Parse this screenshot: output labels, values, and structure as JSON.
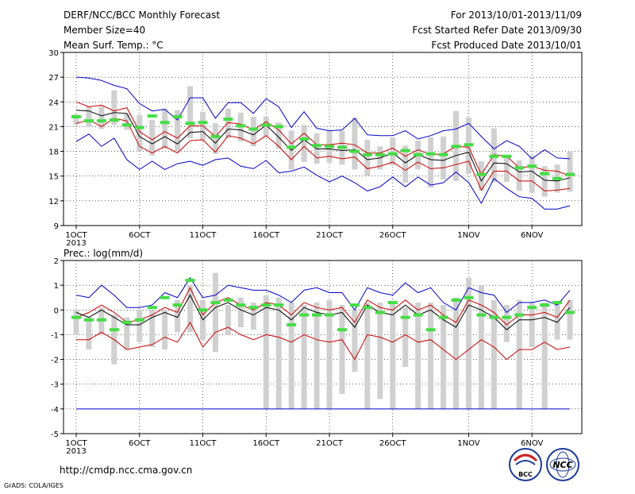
{
  "header": {
    "title": "DERF/NCC/BCC Monthly Forecast",
    "member_size": "Member Size=40",
    "variable": "Mean Surf. Temp.: °C",
    "for_period": "For 2013/10/01-2013/11/09",
    "fcst_started": "Fcst Started Refer Date 2013/09/30",
    "fcst_produced": "Fcst Produced Date 2013/10/01"
  },
  "footer": {
    "url": "http://cmdp.ncc.cma.gov.cn",
    "credit": "GrADS: COLA/IGES",
    "logo_left_text": "BCC",
    "logo_right_text": "NCC"
  },
  "colors": {
    "envelope": "#0000cc",
    "percentile": "#cc0000",
    "mean": "#000000",
    "box": "#d0d0d0",
    "climate_marker": "#44dd44"
  },
  "chart_data": [
    {
      "type": "line",
      "title": "Mean Surf. Temp.: °C",
      "ylim": [
        9,
        30
      ],
      "yticks": [
        "9",
        "12",
        "15",
        "18",
        "21",
        "24",
        "27",
        "30"
      ],
      "xticks": [
        {
          "day": 1,
          "label": "1OCT"
        },
        {
          "day": 6,
          "label": "6OCT"
        },
        {
          "day": 11,
          "label": "11OCT"
        },
        {
          "day": 16,
          "label": "16OCT"
        },
        {
          "day": 21,
          "label": "21OCT"
        },
        {
          "day": 26,
          "label": "26OCT"
        },
        {
          "day": 32,
          "label": "1NOV"
        },
        {
          "day": 37,
          "label": "6NOV"
        }
      ],
      "year_label": "2013",
      "x": [
        1,
        2,
        3,
        4,
        5,
        6,
        7,
        8,
        9,
        10,
        11,
        12,
        13,
        14,
        15,
        16,
        17,
        18,
        19,
        20,
        21,
        22,
        23,
        24,
        25,
        26,
        27,
        28,
        29,
        30,
        31,
        32,
        33,
        34,
        35,
        36,
        37,
        38,
        39,
        40
      ],
      "series": [
        {
          "role": "max",
          "values": [
            27.0,
            26.9,
            26.6,
            26.0,
            25.6,
            23.8,
            22.9,
            23.1,
            21.8,
            24.5,
            24.5,
            22.0,
            23.9,
            23.9,
            22.6,
            24.4,
            23.4,
            20.9,
            22.8,
            20.8,
            20.5,
            20.6,
            22.0,
            20.0,
            19.9,
            19.9,
            20.5,
            19.5,
            19.9,
            20.5,
            20.7,
            21.4,
            19.8,
            18.3,
            19.3,
            18.6,
            17.1,
            18.2,
            17.2,
            17.1
          ]
        },
        {
          "role": "p90",
          "values": [
            24.0,
            23.4,
            23.6,
            22.9,
            23.3,
            20.4,
            19.4,
            20.4,
            19.6,
            21.1,
            21.1,
            19.8,
            21.5,
            21.3,
            20.6,
            21.6,
            20.6,
            18.9,
            20.2,
            18.8,
            18.8,
            19.0,
            18.8,
            17.8,
            17.8,
            18.4,
            17.4,
            18.2,
            17.6,
            17.7,
            18.6,
            18.5,
            15.2,
            17.6,
            17.4,
            16.0,
            16.2,
            15.7,
            15.6,
            15.0
          ]
        },
        {
          "role": "mean",
          "values": [
            23.0,
            22.9,
            22.3,
            22.7,
            22.6,
            19.8,
            18.9,
            19.8,
            18.9,
            20.3,
            20.4,
            19.0,
            20.7,
            20.6,
            20.0,
            21.2,
            19.7,
            18.1,
            19.4,
            18.3,
            18.3,
            18.1,
            18.2,
            17.0,
            17.2,
            17.8,
            16.6,
            17.6,
            17.0,
            16.9,
            17.5,
            17.9,
            14.4,
            16.6,
            16.5,
            15.5,
            15.6,
            14.5,
            14.4,
            14.8
          ]
        },
        {
          "role": "p10",
          "values": [
            21.4,
            21.8,
            21.0,
            22.0,
            21.7,
            18.6,
            17.8,
            18.6,
            17.8,
            19.3,
            19.4,
            17.9,
            19.9,
            19.6,
            18.9,
            19.9,
            18.6,
            17.0,
            18.6,
            17.2,
            17.4,
            17.1,
            17.3,
            15.9,
            16.2,
            16.7,
            15.7,
            16.7,
            15.9,
            16.0,
            16.4,
            16.8,
            13.3,
            15.6,
            15.6,
            14.4,
            14.4,
            13.2,
            13.3,
            13.5
          ]
        },
        {
          "role": "min",
          "values": [
            19.2,
            20.1,
            18.6,
            19.6,
            17.0,
            15.8,
            16.8,
            15.8,
            16.5,
            16.8,
            16.3,
            17.0,
            17.2,
            16.2,
            15.9,
            16.9,
            15.4,
            15.6,
            16.1,
            15.1,
            14.3,
            15.0,
            14.2,
            13.2,
            13.7,
            14.9,
            13.7,
            14.9,
            13.9,
            14.2,
            15.5,
            14.2,
            11.7,
            14.7,
            13.5,
            12.5,
            12.3,
            11.0,
            11.0,
            11.4
          ]
        }
      ],
      "boxes": [
        {
          "low": 21.2,
          "high": 22.5
        },
        {
          "low": 21.0,
          "high": 23.5
        },
        {
          "low": 20.7,
          "high": 23.5
        },
        {
          "low": 21.2,
          "high": 25.4
        },
        {
          "low": 20.6,
          "high": 22.6
        },
        {
          "low": 18.0,
          "high": 22.4
        },
        {
          "low": 17.5,
          "high": 21.8
        },
        {
          "low": 18.3,
          "high": 23.2
        },
        {
          "low": 18.0,
          "high": 23.0
        },
        {
          "low": 19.6,
          "high": 25.9
        },
        {
          "low": 19.3,
          "high": 22.8
        },
        {
          "low": 17.7,
          "high": 21.4
        },
        {
          "low": 19.6,
          "high": 23.2
        },
        {
          "low": 19.2,
          "high": 22.7
        },
        {
          "low": 18.6,
          "high": 22.2
        },
        {
          "low": 19.8,
          "high": 22.2
        },
        {
          "low": 18.3,
          "high": 21.5
        },
        {
          "low": 15.8,
          "high": 20.5
        },
        {
          "low": 16.7,
          "high": 21.2
        },
        {
          "low": 16.5,
          "high": 20.2
        },
        {
          "low": 16.6,
          "high": 20.5
        },
        {
          "low": 16.4,
          "high": 20.5
        },
        {
          "low": 15.8,
          "high": 22.1
        },
        {
          "low": 15.0,
          "high": 19.4
        },
        {
          "low": 15.8,
          "high": 18.6
        },
        {
          "low": 16.3,
          "high": 19.7
        },
        {
          "low": 14.2,
          "high": 18.7
        },
        {
          "low": 15.8,
          "high": 19.3
        },
        {
          "low": 13.6,
          "high": 19.7
        },
        {
          "low": 14.6,
          "high": 19.8
        },
        {
          "low": 14.4,
          "high": 22.9
        },
        {
          "low": 15.3,
          "high": 22.1
        },
        {
          "low": 13.2,
          "high": 16.8
        },
        {
          "low": 14.3,
          "high": 20.8
        },
        {
          "low": 14.3,
          "high": 17.3
        },
        {
          "low": 13.2,
          "high": 16.9
        },
        {
          "low": 13.0,
          "high": 17.5
        },
        {
          "low": 12.5,
          "high": 16.2
        },
        {
          "low": 13.0,
          "high": 16.4
        },
        {
          "low": 13.1,
          "high": 18.0
        }
      ],
      "climate": [
        22.2,
        21.7,
        21.7,
        21.8,
        21.2,
        20.9,
        22.3,
        21.5,
        22.2,
        21.4,
        21.5,
        19.8,
        21.9,
        21.1,
        20.7,
        21.2,
        21.0,
        18.5,
        19.5,
        18.7,
        18.6,
        18.5,
        18.0,
        17.6,
        17.6,
        17.7,
        18.1,
        17.6,
        17.7,
        17.6,
        18.6,
        18.8,
        15.2,
        17.4,
        17.4,
        16.0,
        16.2,
        15.3,
        14.7,
        15.2
      ]
    },
    {
      "type": "line",
      "title": "Prec.: log(mm/d)",
      "ylim": [
        -5,
        2
      ],
      "yticks": [
        "-5",
        "-4",
        "-3",
        "-2",
        "-1",
        "0",
        "1",
        "2"
      ],
      "xticks": [
        {
          "day": 1,
          "label": "1OCT"
        },
        {
          "day": 6,
          "label": "6OCT"
        },
        {
          "day": 11,
          "label": "11OCT"
        },
        {
          "day": 16,
          "label": "16OCT"
        },
        {
          "day": 21,
          "label": "21OCT"
        },
        {
          "day": 26,
          "label": "26OCT"
        },
        {
          "day": 32,
          "label": "1NOV"
        },
        {
          "day": 37,
          "label": "6NOV"
        }
      ],
      "year_label": "2013",
      "x": [
        1,
        2,
        3,
        4,
        5,
        6,
        7,
        8,
        9,
        10,
        11,
        12,
        13,
        14,
        15,
        16,
        17,
        18,
        19,
        20,
        21,
        22,
        23,
        24,
        25,
        26,
        27,
        28,
        29,
        30,
        31,
        32,
        33,
        34,
        35,
        36,
        37,
        38,
        39,
        40
      ],
      "series": [
        {
          "role": "max",
          "values": [
            0.6,
            0.5,
            1.0,
            0.6,
            0.1,
            0.1,
            0.2,
            0.7,
            0.5,
            1.3,
            0.5,
            0.6,
            1.0,
            0.9,
            0.8,
            0.8,
            0.6,
            0.3,
            0.8,
            0.9,
            0.7,
            0.7,
            0.0,
            0.9,
            0.7,
            0.6,
            1.1,
            0.7,
            0.9,
            0.3,
            0.0,
            0.9,
            0.7,
            0.6,
            -0.1,
            0.3,
            0.3,
            0.4,
            0.2,
            0.8
          ]
        },
        {
          "role": "p90",
          "values": [
            -0.3,
            -0.1,
            0.2,
            -0.1,
            -0.5,
            -0.4,
            -0.2,
            0.1,
            -0.1,
            0.9,
            -0.2,
            0.3,
            0.5,
            0.2,
            0.0,
            0.3,
            0.2,
            -0.2,
            0.3,
            0.1,
            0.0,
            0.1,
            -0.5,
            0.4,
            0.1,
            0.0,
            0.4,
            0.0,
            0.2,
            -0.2,
            -0.5,
            0.4,
            0.2,
            -0.1,
            -0.6,
            -0.2,
            -0.2,
            -0.1,
            -0.3,
            0.4
          ]
        },
        {
          "role": "mean",
          "values": [
            -0.1,
            -0.3,
            0.0,
            -0.3,
            -0.6,
            -0.6,
            -0.3,
            -0.1,
            -0.3,
            0.6,
            -0.4,
            0.1,
            0.3,
            0.0,
            -0.2,
            0.1,
            0.0,
            -0.4,
            0.1,
            -0.1,
            -0.2,
            -0.1,
            -0.7,
            0.2,
            -0.1,
            -0.2,
            0.2,
            -0.2,
            0.0,
            -0.4,
            -0.7,
            0.2,
            0.0,
            -0.3,
            -0.8,
            -0.4,
            -0.4,
            -0.3,
            -0.5,
            0.1
          ]
        },
        {
          "role": "p10",
          "values": [
            -1.2,
            -1.2,
            -0.9,
            -1.2,
            -1.6,
            -1.5,
            -1.4,
            -1.1,
            -1.3,
            -0.5,
            -1.5,
            -0.9,
            -0.7,
            -1.0,
            -1.2,
            -1.0,
            -1.1,
            -1.3,
            -1.0,
            -1.2,
            -1.3,
            -1.2,
            -2.0,
            -1.0,
            -1.1,
            -1.3,
            -1.0,
            -1.3,
            -1.2,
            -1.6,
            -2.0,
            -1.6,
            -1.2,
            -1.5,
            -2.0,
            -1.6,
            -1.6,
            -1.3,
            -1.6,
            -1.5
          ]
        },
        {
          "role": "min",
          "values": [
            -4.0,
            -4.0,
            -4.0,
            -4.0,
            -4.0,
            -4.0,
            -4.0,
            -4.0,
            -4.0,
            -4.0,
            -4.0,
            -4.0,
            -4.0,
            -4.0,
            -4.0,
            -4.0,
            -4.0,
            -4.0,
            -4.0,
            -4.0,
            -4.0,
            -4.0,
            -4.0,
            -4.0,
            -4.0,
            -4.0,
            -4.0,
            -4.0,
            -4.0,
            -4.0,
            -4.0,
            -4.0,
            -4.0,
            -4.0,
            -4.0,
            -4.0,
            -4.0,
            -4.0,
            -4.0,
            -4.0
          ]
        }
      ],
      "boxes": [
        {
          "low": -1.0,
          "high": 0.0
        },
        {
          "low": -1.6,
          "high": -0.3
        },
        {
          "low": -1.0,
          "high": 0.1
        },
        {
          "low": -2.2,
          "high": -0.2
        },
        {
          "low": -1.6,
          "high": -0.3
        },
        {
          "low": -1.3,
          "high": 0.0
        },
        {
          "low": -1.5,
          "high": 0.0
        },
        {
          "low": -1.6,
          "high": 0.0
        },
        {
          "low": -0.9,
          "high": 0.4
        },
        {
          "low": -0.9,
          "high": 1.0
        },
        {
          "low": -1.2,
          "high": 0.4
        },
        {
          "low": -1.7,
          "high": 1.5
        },
        {
          "low": -1.0,
          "high": 0.2
        },
        {
          "low": -0.7,
          "high": 0.5
        },
        {
          "low": -0.8,
          "high": 0.3
        },
        {
          "low": -4.0,
          "high": 0.6
        },
        {
          "low": -4.0,
          "high": 0.5
        },
        {
          "low": -4.0,
          "high": 0.3
        },
        {
          "low": -4.0,
          "high": 0.2
        },
        {
          "low": -4.0,
          "high": 0.3
        },
        {
          "low": -4.0,
          "high": 0.4
        },
        {
          "low": -3.4,
          "high": 0.2
        },
        {
          "low": -2.5,
          "high": 0.0
        },
        {
          "low": -4.0,
          "high": 0.3
        },
        {
          "low": -3.6,
          "high": 0.3
        },
        {
          "low": -4.0,
          "high": 0.3
        },
        {
          "low": -2.3,
          "high": 0.1
        },
        {
          "low": -4.0,
          "high": 0.3
        },
        {
          "low": -4.0,
          "high": 0.3
        },
        {
          "low": -4.0,
          "high": 0.2
        },
        {
          "low": -4.0,
          "high": 0.5
        },
        {
          "low": -4.0,
          "high": 1.3
        },
        {
          "low": -4.0,
          "high": 1.0
        },
        {
          "low": -4.0,
          "high": 0.4
        },
        {
          "low": -1.3,
          "high": 0.2
        },
        {
          "low": -4.0,
          "high": 0.4
        },
        {
          "low": -1.5,
          "high": 0.3
        },
        {
          "low": -4.0,
          "high": 0.3
        },
        {
          "low": -1.2,
          "high": 0.3
        },
        {
          "low": -1.2,
          "high": 0.4
        }
      ],
      "climate": [
        -0.3,
        -0.4,
        -0.4,
        -0.8,
        -0.5,
        -0.4,
        0.1,
        0.5,
        0.2,
        1.2,
        0.0,
        0.3,
        0.4,
        0.2,
        0.1,
        0.2,
        0.2,
        -0.6,
        -0.2,
        -0.2,
        -0.2,
        -0.8,
        0.2,
        0.1,
        -0.1,
        0.3,
        -0.3,
        -0.2,
        -0.8,
        -0.3,
        0.4,
        0.5,
        -0.2,
        -0.3,
        -0.3,
        -0.2,
        0.1,
        0.2,
        0.3,
        -0.1
      ]
    }
  ]
}
